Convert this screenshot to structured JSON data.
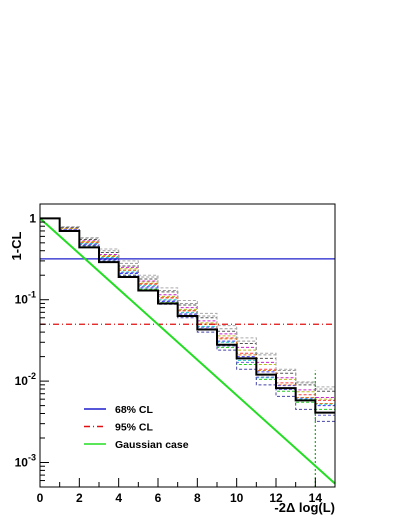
{
  "chart_data": {
    "type": "line",
    "xlabel": "-2Δ log(L)",
    "ylabel": "1-CL",
    "xlim": [
      0,
      15
    ],
    "ylim": [
      0.0005,
      1.5
    ],
    "yscale": "log",
    "grid": false,
    "x_ticks": [
      "0",
      "2",
      "4",
      "6",
      "8",
      "10",
      "12",
      "14"
    ],
    "y_ticks": [
      {
        "value": 1,
        "label": "1"
      },
      {
        "value": 0.1,
        "label": "10^-1",
        "base": "10",
        "exp": "-1"
      },
      {
        "value": 0.01,
        "label": "10^-2",
        "base": "10",
        "exp": "-2"
      },
      {
        "value": 0.001,
        "label": "10^-3",
        "base": "10",
        "exp": "-3"
      }
    ],
    "legend_position": "bottom-left",
    "legend": [
      {
        "label": "68% CL",
        "color": "#1f1fcc",
        "style": "solid"
      },
      {
        "label": "95% CL",
        "color": "#e01010",
        "style": "dashdot"
      },
      {
        "label": "Gaussian case",
        "color": "#22dd22",
        "style": "solid"
      }
    ],
    "reference_lines": [
      {
        "y": 0.3173,
        "color": "#1f1fcc",
        "style": "solid"
      },
      {
        "y": 0.05,
        "color": "#e01010",
        "style": "dashdot"
      },
      {
        "x": 14,
        "color": "#22aa22",
        "style": "dotted",
        "y_top": 0.0135
      }
    ],
    "gaussian_case": {
      "color": "#22dd22",
      "x": [
        0,
        15
      ],
      "y": [
        1,
        0.00055
      ]
    },
    "main_step": {
      "color": "#000000",
      "bin_edges": [
        0,
        1,
        2,
        3,
        4,
        5,
        6,
        7,
        8,
        9,
        10,
        11,
        12,
        13,
        14,
        15
      ],
      "values": [
        1.0,
        0.7,
        0.44,
        0.29,
        0.19,
        0.13,
        0.09,
        0.063,
        0.043,
        0.028,
        0.019,
        0.012,
        0.0082,
        0.0058,
        0.0041
      ]
    },
    "toy_steps": [
      {
        "color": "#3a3aff",
        "values": [
          1.0,
          0.72,
          0.47,
          0.31,
          0.21,
          0.14,
          0.095,
          0.067,
          0.046,
          0.031,
          0.02,
          0.013,
          0.0088,
          0.0062,
          0.005
        ]
      },
      {
        "color": "#ff3a3a",
        "values": [
          1.0,
          0.74,
          0.5,
          0.34,
          0.23,
          0.155,
          0.105,
          0.073,
          0.05,
          0.034,
          0.022,
          0.014,
          0.0095,
          0.0068,
          0.0058
        ]
      },
      {
        "color": "#22cc22",
        "values": [
          1.0,
          0.71,
          0.46,
          0.3,
          0.2,
          0.135,
          0.092,
          0.064,
          0.043,
          0.026,
          0.016,
          0.0105,
          0.0075,
          0.0055,
          0.0045
        ]
      },
      {
        "color": "#22cccc",
        "values": [
          1.0,
          0.73,
          0.49,
          0.33,
          0.22,
          0.15,
          0.1,
          0.07,
          0.047,
          0.03,
          0.018,
          0.011,
          0.008,
          0.006,
          0.0052
        ]
      },
      {
        "color": "#cc22cc",
        "values": [
          1.0,
          0.76,
          0.53,
          0.36,
          0.25,
          0.17,
          0.115,
          0.08,
          0.055,
          0.038,
          0.026,
          0.017,
          0.011,
          0.0078,
          0.0063
        ]
      },
      {
        "color": "#bbbb22",
        "values": [
          1.0,
          0.75,
          0.52,
          0.35,
          0.24,
          0.165,
          0.11,
          0.076,
          0.052,
          0.036,
          0.024,
          0.016,
          0.0105,
          0.0074,
          0.006
        ]
      },
      {
        "color": "#999999",
        "values": [
          1.0,
          0.78,
          0.57,
          0.4,
          0.28,
          0.19,
          0.13,
          0.09,
          0.063,
          0.044,
          0.031,
          0.021,
          0.0135,
          0.0095,
          0.008
        ]
      },
      {
        "color": "#555555",
        "values": [
          1.0,
          0.77,
          0.55,
          0.38,
          0.26,
          0.18,
          0.125,
          0.086,
          0.06,
          0.041,
          0.029,
          0.019,
          0.0125,
          0.009,
          0.0075
        ]
      },
      {
        "color": "#4444aa",
        "values": [
          1.0,
          0.72,
          0.46,
          0.3,
          0.2,
          0.13,
          0.088,
          0.06,
          0.04,
          0.024,
          0.014,
          0.009,
          0.0065,
          0.0045,
          0.0032
        ]
      },
      {
        "color": "#dd7722",
        "values": [
          1.0,
          0.74,
          0.51,
          0.34,
          0.23,
          0.158,
          0.107,
          0.074,
          0.05,
          0.033,
          0.021,
          0.0135,
          0.009,
          0.0063,
          0.0053
        ]
      },
      {
        "color": "#aaaaaa",
        "values": [
          1.0,
          0.79,
          0.58,
          0.42,
          0.3,
          0.2,
          0.14,
          0.098,
          0.068,
          0.048,
          0.034,
          0.022,
          0.014,
          0.0098,
          0.0085
        ]
      },
      {
        "color": "#6666dd",
        "values": [
          1.0,
          0.73,
          0.48,
          0.32,
          0.215,
          0.145,
          0.097,
          0.066,
          0.044,
          0.027,
          0.017,
          0.0112,
          0.0079,
          0.0058,
          0.0038
        ]
      }
    ]
  }
}
